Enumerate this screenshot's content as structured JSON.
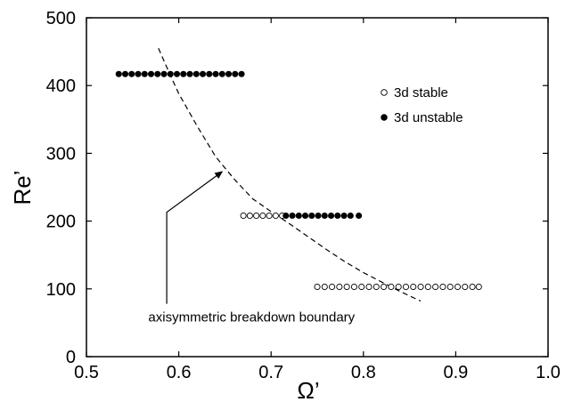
{
  "chart_data": {
    "type": "scatter",
    "xlabel": "Ω’",
    "ylabel": "Re’",
    "xlim": [
      0.5,
      1.0
    ],
    "ylim": [
      0,
      500
    ],
    "xticks": [
      "0.5",
      "0.6",
      "0.7",
      "0.8",
      "0.9",
      "1.0"
    ],
    "yticks": [
      "0",
      "100",
      "200",
      "300",
      "400",
      "500"
    ],
    "legend_position": "top-right",
    "series": [
      {
        "name": "3d stable",
        "marker": "open-circle",
        "color": "#000000",
        "points": [
          {
            "x": 0.67,
            "y": 208
          },
          {
            "x": 0.677,
            "y": 208
          },
          {
            "x": 0.684,
            "y": 208
          },
          {
            "x": 0.691,
            "y": 208
          },
          {
            "x": 0.698,
            "y": 208
          },
          {
            "x": 0.705,
            "y": 208
          },
          {
            "x": 0.712,
            "y": 208
          },
          {
            "x": 0.75,
            "y": 103
          },
          {
            "x": 0.758,
            "y": 103
          },
          {
            "x": 0.766,
            "y": 103
          },
          {
            "x": 0.774,
            "y": 103
          },
          {
            "x": 0.782,
            "y": 103
          },
          {
            "x": 0.79,
            "y": 103
          },
          {
            "x": 0.798,
            "y": 103
          },
          {
            "x": 0.806,
            "y": 103
          },
          {
            "x": 0.814,
            "y": 103
          },
          {
            "x": 0.822,
            "y": 103
          },
          {
            "x": 0.83,
            "y": 103
          },
          {
            "x": 0.838,
            "y": 103
          },
          {
            "x": 0.846,
            "y": 103
          },
          {
            "x": 0.854,
            "y": 103
          },
          {
            "x": 0.862,
            "y": 103
          },
          {
            "x": 0.87,
            "y": 103
          },
          {
            "x": 0.878,
            "y": 103
          },
          {
            "x": 0.886,
            "y": 103
          },
          {
            "x": 0.894,
            "y": 103
          },
          {
            "x": 0.902,
            "y": 103
          },
          {
            "x": 0.91,
            "y": 103
          },
          {
            "x": 0.918,
            "y": 103
          },
          {
            "x": 0.925,
            "y": 103
          }
        ]
      },
      {
        "name": "3d unstable",
        "marker": "filled-circle",
        "color": "#000000",
        "points": [
          {
            "x": 0.535,
            "y": 417
          },
          {
            "x": 0.542,
            "y": 417
          },
          {
            "x": 0.549,
            "y": 417
          },
          {
            "x": 0.556,
            "y": 417
          },
          {
            "x": 0.563,
            "y": 417
          },
          {
            "x": 0.57,
            "y": 417
          },
          {
            "x": 0.577,
            "y": 417
          },
          {
            "x": 0.584,
            "y": 417
          },
          {
            "x": 0.591,
            "y": 417
          },
          {
            "x": 0.598,
            "y": 417
          },
          {
            "x": 0.605,
            "y": 417
          },
          {
            "x": 0.612,
            "y": 417
          },
          {
            "x": 0.619,
            "y": 417
          },
          {
            "x": 0.626,
            "y": 417
          },
          {
            "x": 0.633,
            "y": 417
          },
          {
            "x": 0.64,
            "y": 417
          },
          {
            "x": 0.647,
            "y": 417
          },
          {
            "x": 0.654,
            "y": 417
          },
          {
            "x": 0.661,
            "y": 417
          },
          {
            "x": 0.668,
            "y": 417
          },
          {
            "x": 0.716,
            "y": 208
          },
          {
            "x": 0.723,
            "y": 208
          },
          {
            "x": 0.73,
            "y": 208
          },
          {
            "x": 0.737,
            "y": 208
          },
          {
            "x": 0.744,
            "y": 208
          },
          {
            "x": 0.751,
            "y": 208
          },
          {
            "x": 0.758,
            "y": 208
          },
          {
            "x": 0.765,
            "y": 208
          },
          {
            "x": 0.772,
            "y": 208
          },
          {
            "x": 0.779,
            "y": 208
          },
          {
            "x": 0.786,
            "y": 208
          },
          {
            "x": 0.795,
            "y": 208
          }
        ]
      }
    ],
    "boundary_curve": {
      "style": "dashed",
      "points": [
        {
          "x": 0.578,
          "y": 455
        },
        {
          "x": 0.59,
          "y": 418
        },
        {
          "x": 0.6,
          "y": 388
        },
        {
          "x": 0.62,
          "y": 340
        },
        {
          "x": 0.64,
          "y": 295
        },
        {
          "x": 0.66,
          "y": 262
        },
        {
          "x": 0.68,
          "y": 233
        },
        {
          "x": 0.7,
          "y": 214
        },
        {
          "x": 0.72,
          "y": 196
        },
        {
          "x": 0.74,
          "y": 177
        },
        {
          "x": 0.76,
          "y": 158
        },
        {
          "x": 0.78,
          "y": 140
        },
        {
          "x": 0.8,
          "y": 124
        },
        {
          "x": 0.82,
          "y": 110
        },
        {
          "x": 0.84,
          "y": 96
        },
        {
          "x": 0.862,
          "y": 82
        }
      ]
    },
    "annotation": {
      "text": "axisymmetric breakdown boundary",
      "text_anchor": {
        "x": 0.567,
        "y": 52
      },
      "arrow_points": [
        {
          "x": 0.587,
          "y": 78
        },
        {
          "x": 0.587,
          "y": 213
        },
        {
          "x": 0.647,
          "y": 273
        }
      ]
    }
  }
}
